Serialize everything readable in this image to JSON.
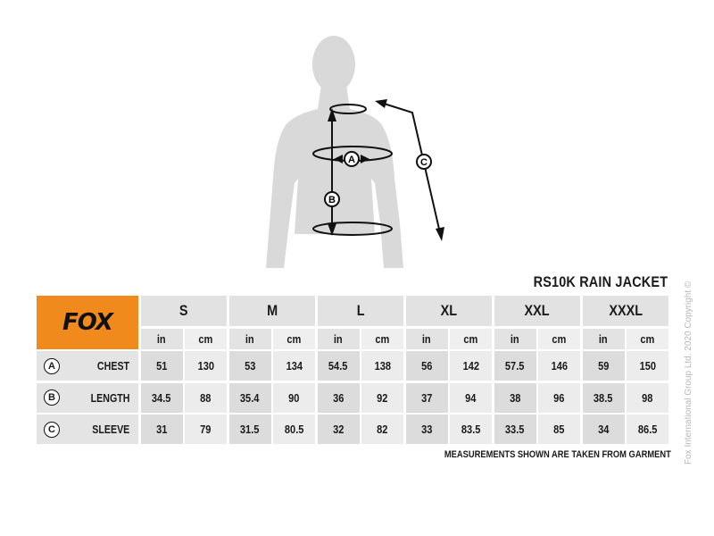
{
  "title": "RS10K RAIN JACKET",
  "logo": {
    "text": "FOX",
    "color": "#f08a1c"
  },
  "figure_labels": {
    "a": "A",
    "b": "B",
    "c": "C"
  },
  "sizes": [
    "S",
    "M",
    "L",
    "XL",
    "XXL",
    "XXXL"
  ],
  "units": {
    "in": "in",
    "cm": "cm"
  },
  "rows": [
    {
      "marker": "A",
      "name": "CHEST",
      "values": [
        "51",
        "130",
        "53",
        "134",
        "54.5",
        "138",
        "56",
        "142",
        "57.5",
        "146",
        "59",
        "150"
      ]
    },
    {
      "marker": "B",
      "name": "LENGTH",
      "values": [
        "34.5",
        "88",
        "35.4",
        "90",
        "36",
        "92",
        "37",
        "94",
        "38",
        "96",
        "38.5",
        "98"
      ]
    },
    {
      "marker": "C",
      "name": "SLEEVE",
      "values": [
        "31",
        "79",
        "31.5",
        "80.5",
        "32",
        "82",
        "33",
        "83.5",
        "33.5",
        "85",
        "34",
        "86.5"
      ]
    }
  ],
  "note": "MEASUREMENTS SHOWN ARE TAKEN FROM GARMENT",
  "copyright": "Fox International Group Ltd. 2020 Copyright ©"
}
